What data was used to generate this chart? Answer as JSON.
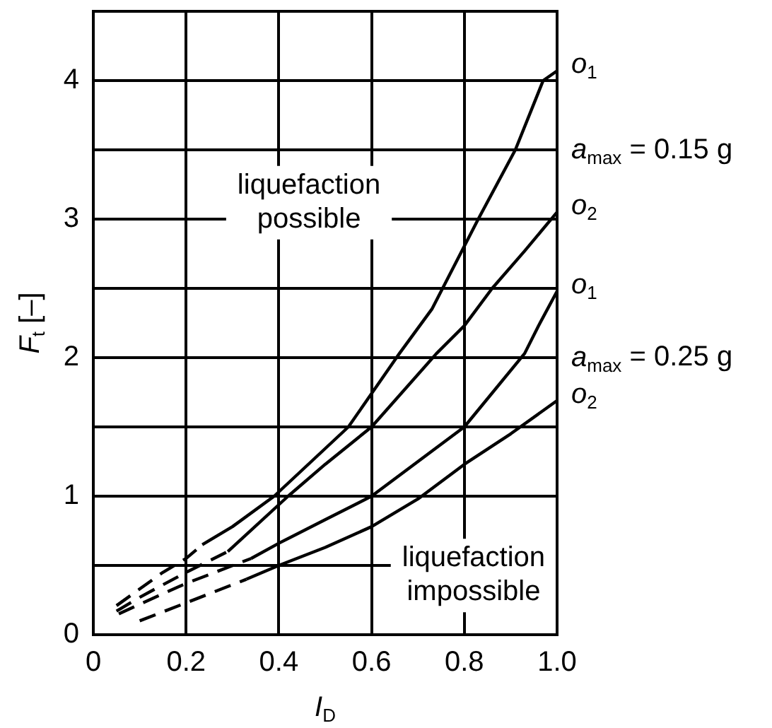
{
  "chart_data": {
    "type": "line",
    "xlabel": "I$_{D}$",
    "ylabel": "F$_{t}$ [–]",
    "xlim": [
      0,
      1.0
    ],
    "xticks": [
      0,
      0.2,
      0.4,
      0.6,
      0.8,
      {
        "value": 1.0,
        "label": "1.0"
      }
    ],
    "ylim": [
      0,
      4.5
    ],
    "yticks": [
      0,
      {
        "value": 0.5,
        "label": null
      },
      1,
      {
        "value": 1.5,
        "label": null
      },
      2,
      {
        "value": 2.5,
        "label": null
      },
      3,
      {
        "value": 3.5,
        "label": null
      },
      4
    ],
    "grid": true,
    "legend": false,
    "marker": "none",
    "series": [
      {
        "color": "#000000",
        "line_style": "dashed",
        "x": [
          0.05,
          0.1,
          0.15,
          0.2,
          0.235
        ],
        "values": [
          0.21,
          0.33,
          0.45,
          0.55,
          0.65
        ]
      },
      {
        "name": "o$_{1}$",
        "color": "#000000",
        "line_style": "solid",
        "x": [
          0.235,
          0.3,
          0.39,
          0.47,
          0.55,
          0.66,
          0.73,
          0.83,
          0.91,
          0.97,
          1.0
        ],
        "values": [
          0.65,
          0.78,
          1.0,
          1.25,
          1.5,
          2.03,
          2.35,
          3.0,
          3.5,
          4.0,
          4.07
        ]
      },
      {
        "color": "#000000",
        "line_style": "dashed",
        "x": [
          0.05,
          0.1,
          0.2,
          0.29
        ],
        "values": [
          0.17,
          0.27,
          0.45,
          0.6
        ]
      },
      {
        "name": "o$_{2}$",
        "color": "#000000",
        "line_style": "solid",
        "x": [
          0.29,
          0.42,
          0.5,
          0.6,
          0.74,
          0.8,
          0.86,
          0.93,
          1.0
        ],
        "values": [
          0.6,
          1.0,
          1.23,
          1.5,
          2.03,
          2.23,
          2.5,
          2.77,
          3.05
        ]
      },
      {
        "color": "#000000",
        "line_style": "dashed",
        "x": [
          0.055,
          0.1,
          0.2,
          0.34
        ],
        "values": [
          0.15,
          0.22,
          0.37,
          0.55
        ]
      },
      {
        "name": "o$_{1}$",
        "color": "#000000",
        "line_style": "solid",
        "x": [
          0.34,
          0.4,
          0.5,
          0.6,
          0.7,
          0.8,
          0.93,
          0.96,
          1.0
        ],
        "values": [
          0.55,
          0.66,
          0.83,
          1.0,
          1.25,
          1.5,
          2.03,
          2.23,
          2.48
        ]
      },
      {
        "color": "#000000",
        "line_style": "dashed",
        "x": [
          0.1,
          0.2,
          0.33
        ],
        "values": [
          0.1,
          0.23,
          0.4
        ]
      },
      {
        "name": "o$_{2}$",
        "color": "#000000",
        "line_style": "solid",
        "x": [
          0.33,
          0.4,
          0.5,
          0.6,
          0.7,
          0.8,
          0.9,
          1.0
        ],
        "values": [
          0.4,
          0.5,
          0.63,
          0.78,
          0.98,
          1.23,
          1.45,
          1.69
        ]
      }
    ],
    "annotations": [
      "a$_{max}$ = 0.15 g",
      "a$_{max}$ = 0.25 g",
      "liquefaction\npossible",
      "liquefaction\nimpossible"
    ]
  }
}
